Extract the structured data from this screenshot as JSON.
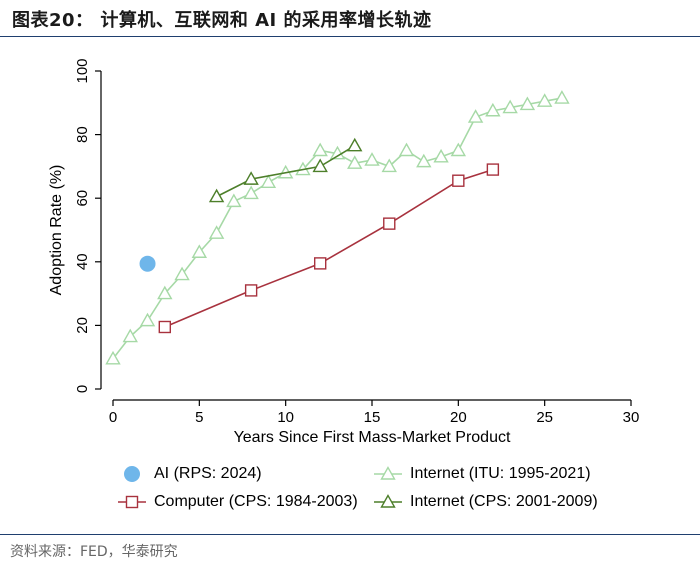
{
  "header": {
    "title": "图表20： 计算机、互联网和 AI 的采用率增长轨迹"
  },
  "footer": {
    "source": "资料来源：FED，华泰研究"
  },
  "chart_data": {
    "type": "line",
    "title": "",
    "xlabel": "Years Since First Mass-Market Product",
    "ylabel": "Adoption Rate  (%)",
    "xlim": [
      0,
      30
    ],
    "ylim": [
      0,
      100
    ],
    "xticks": [
      0,
      5,
      10,
      15,
      20,
      25,
      30
    ],
    "yticks": [
      0,
      20,
      40,
      60,
      80,
      100
    ],
    "grid": false,
    "legend_position": "bottom",
    "series": [
      {
        "key": "ai",
        "name": "AI (RPS: 2024)",
        "marker": "circle",
        "color": "#6fb6ea",
        "line": false,
        "x": [
          2
        ],
        "y": [
          39.4
        ]
      },
      {
        "key": "internet_itu",
        "name": "Internet (ITU: 1995-2021)",
        "marker": "triangle",
        "color": "#a6d9a6",
        "line": true,
        "x": [
          0,
          1,
          2,
          3,
          4,
          5,
          6,
          7,
          8,
          9,
          10,
          11,
          12,
          13,
          14,
          15,
          16,
          17,
          18,
          19,
          20,
          21,
          22,
          23,
          24,
          25,
          26
        ],
        "y": [
          9.5,
          16.5,
          21.5,
          30,
          36,
          43,
          49,
          59,
          61.5,
          65,
          68,
          69,
          75,
          74,
          71,
          72,
          70,
          75,
          71.5,
          73,
          75,
          85.5,
          87.5,
          88.5,
          89.5,
          90.5,
          91.5
        ]
      },
      {
        "key": "computer_cps",
        "name": "Computer (CPS: 1984-2003)",
        "marker": "square",
        "color": "#a8323e",
        "line": true,
        "x": [
          3,
          8,
          12,
          16,
          20,
          22
        ],
        "y": [
          19.5,
          31,
          39.5,
          52,
          65.5,
          69
        ]
      },
      {
        "key": "internet_cps",
        "name": "Internet (CPS: 2001-2009)",
        "marker": "triangle",
        "color": "#4d7f2a",
        "line": true,
        "x": [
          6,
          8,
          12,
          14
        ],
        "y": [
          60.5,
          66,
          70,
          76.5
        ]
      }
    ],
    "legend_order": [
      "ai",
      "internet_itu",
      "computer_cps",
      "internet_cps"
    ]
  }
}
